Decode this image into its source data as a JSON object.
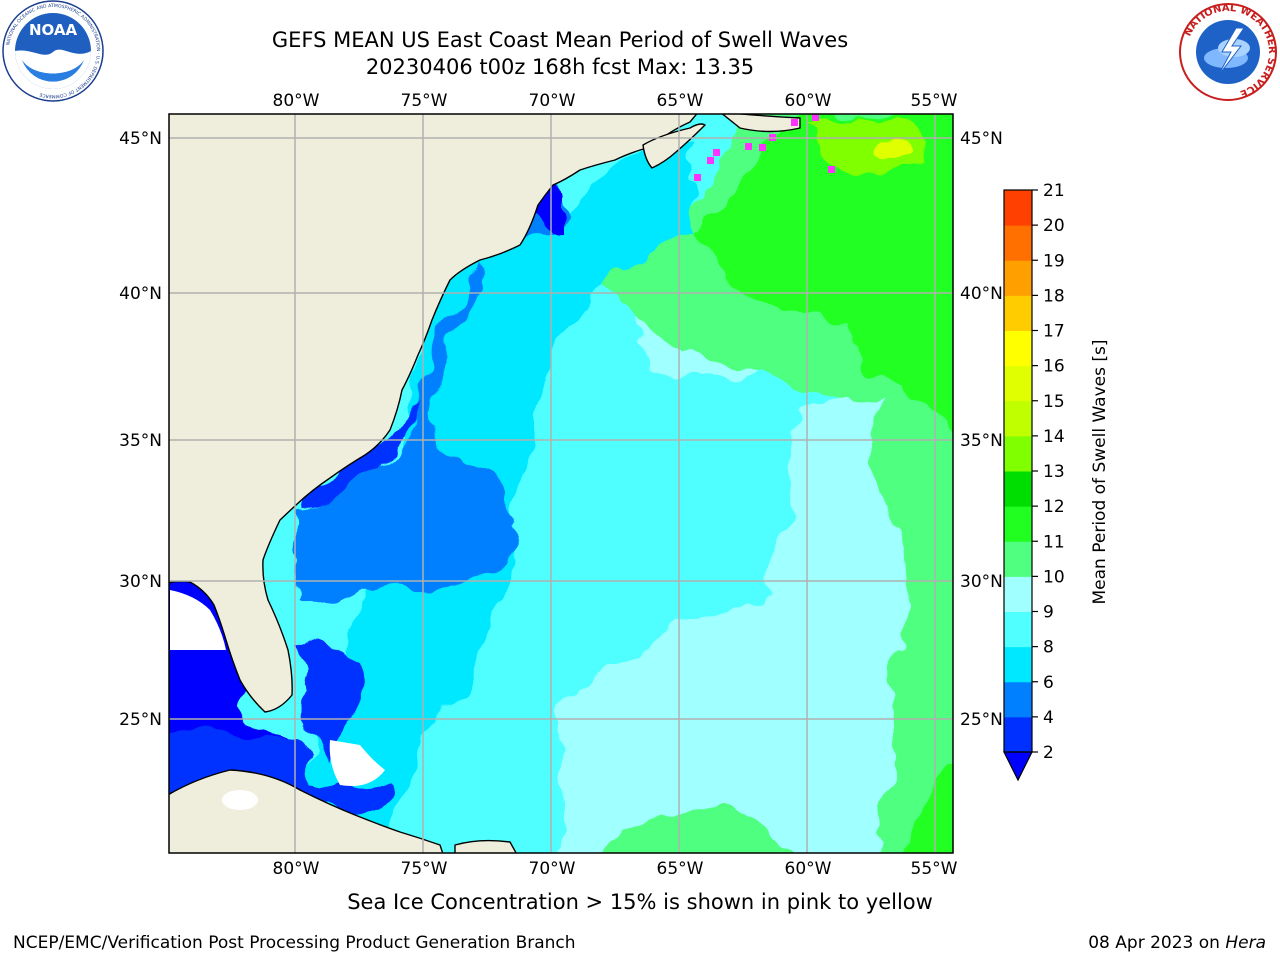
{
  "header": {
    "title_line1": "GEFS MEAN US East Coast Mean Period of Swell Waves",
    "title_line2": "20230406 t00z 168h fcst   Max: 13.35"
  },
  "logos": {
    "left": "NOAA",
    "left_ring_text": "NATIONAL OCEANIC AND ATMOSPHERIC ADMINISTRATION · U.S. DEPARTMENT OF COMMERCE",
    "right_ring_text": "NATIONAL WEATHER SERVICE"
  },
  "map": {
    "lon_labels": [
      "80°W",
      "75°W",
      "70°W",
      "65°W",
      "60°W",
      "55°W"
    ],
    "lat_labels": [
      "45°N",
      "40°N",
      "35°N",
      "30°N",
      "25°N"
    ],
    "lon_range": [
      -85,
      -54
    ],
    "lat_range": [
      20.5,
      46
    ]
  },
  "colorbar": {
    "label": "Mean Period of Swell Waves [s]",
    "ticks": [
      "2",
      "4",
      "6",
      "8",
      "9",
      "10",
      "11",
      "12",
      "13",
      "14",
      "15",
      "16",
      "17",
      "18",
      "19",
      "20",
      "21"
    ],
    "colors": [
      "#0030ff",
      "#0080ff",
      "#00e8ff",
      "#50ffff",
      "#a0ffff",
      "#50ff80",
      "#20ff20",
      "#00dd00",
      "#80ff00",
      "#c0ff00",
      "#e0ff00",
      "#ffff00",
      "#ffcc00",
      "#ffa000",
      "#ff7000",
      "#ff4000",
      "#ff0000"
    ],
    "under_color": "#0000ff"
  },
  "colors": {
    "land": "#efeedc",
    "grid": "#b0b0b0",
    "ice": "#ff33ff"
  },
  "caption": "Sea Ice Concentration > 15% is shown in pink to yellow",
  "footer": {
    "left": "NCEP/EMC/Verification Post Processing Product Generation Branch",
    "right_date": "08 Apr 2023 on ",
    "right_host": "Hera"
  }
}
